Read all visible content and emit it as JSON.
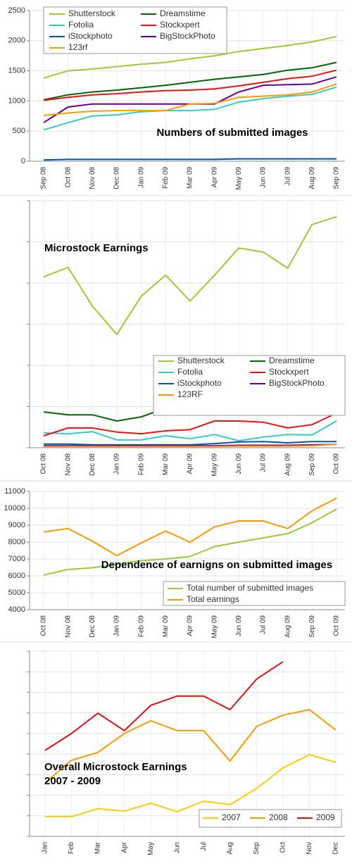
{
  "chart_data": [
    {
      "type": "line",
      "title": "Numbers of submitted images",
      "categories": [
        "Sep 08",
        "Oct 08",
        "Nov 08",
        "Dec 08",
        "Jan 09",
        "Feb 09",
        "Mar 09",
        "Apr 09",
        "May 09",
        "Jun 09",
        "Jul 09",
        "Aug 09",
        "Sep 09"
      ],
      "ylim": [
        0,
        2500
      ],
      "yticks": [
        0,
        500,
        1000,
        1500,
        2000,
        2500
      ],
      "grid": true,
      "ytick_labels": true,
      "series": [
        {
          "name": "Shutterstock",
          "color": "#99cc33",
          "values": [
            1380,
            1500,
            1530,
            1570,
            1610,
            1640,
            1700,
            1750,
            1820,
            1870,
            1920,
            1980,
            2070
          ]
        },
        {
          "name": "Dreamstime",
          "color": "#006600",
          "values": [
            1020,
            1100,
            1150,
            1180,
            1220,
            1260,
            1310,
            1360,
            1400,
            1440,
            1510,
            1550,
            1640
          ]
        },
        {
          "name": "Fotolia",
          "color": "#33cccc",
          "values": [
            520,
            640,
            750,
            770,
            820,
            840,
            840,
            860,
            980,
            1040,
            1080,
            1110,
            1230
          ]
        },
        {
          "name": "Stockxpert",
          "color": "#ee1111",
          "values": [
            1010,
            1060,
            1100,
            1120,
            1150,
            1170,
            1180,
            1200,
            1250,
            1310,
            1370,
            1410,
            1510
          ]
        },
        {
          "name": "iStockphoto",
          "color": "#0055bb",
          "values": [
            20,
            30,
            30,
            30,
            30,
            30,
            30,
            30,
            40,
            40,
            40,
            40,
            40
          ]
        },
        {
          "name": "BigStockPhoto",
          "color": "#660099",
          "values": [
            640,
            900,
            950,
            950,
            950,
            950,
            950,
            950,
            1150,
            1260,
            1270,
            1280,
            1400
          ]
        },
        {
          "name": "123rf",
          "color": "#ff9900",
          "values": [
            760,
            800,
            830,
            840,
            840,
            840,
            950,
            960,
            1060,
            1080,
            1100,
            1150,
            1280
          ]
        }
      ]
    },
    {
      "type": "line",
      "title": "Microstock Earnings",
      "categories": [
        "Oct 08",
        "Nov 08",
        "Dec 08",
        "Jan 09",
        "Feb 09",
        "Mar 09",
        "Apr 09",
        "May 09",
        "Jun 09",
        "Jul 09",
        "Aug 09",
        "Sep 09",
        "Oct 09"
      ],
      "ylim": [
        0,
        6
      ],
      "yticks": [
        0,
        1,
        2,
        3,
        4,
        5,
        6
      ],
      "grid": true,
      "ytick_labels": false,
      "series": [
        {
          "name": "Shutterstock",
          "color": "#99cc33",
          "values": [
            4.15,
            4.38,
            3.44,
            2.75,
            3.68,
            4.19,
            3.56,
            4.19,
            4.85,
            4.75,
            4.36,
            5.42,
            5.61
          ]
        },
        {
          "name": "Dreamstime",
          "color": "#006600",
          "values": [
            0.87,
            0.8,
            0.8,
            0.65,
            0.75,
            0.96,
            0.82,
            0.94,
            0.85,
            0.87,
            0.8,
            1.03,
            1.03
          ]
        },
        {
          "name": "Fotolia",
          "color": "#33cccc",
          "values": [
            0.36,
            0.34,
            0.39,
            0.19,
            0.19,
            0.29,
            0.22,
            0.32,
            0.17,
            0.26,
            0.32,
            0.31,
            0.65
          ]
        },
        {
          "name": "Stockxpert",
          "color": "#ee1111",
          "values": [
            0.29,
            0.48,
            0.48,
            0.38,
            0.34,
            0.41,
            0.44,
            0.65,
            0.65,
            0.62,
            0.48,
            0.56,
            0.84
          ]
        },
        {
          "name": "iStockphoto",
          "color": "#0055bb",
          "values": [
            0.09,
            0.09,
            0.07,
            0.07,
            0.07,
            0.07,
            0.07,
            0.1,
            0.14,
            0.15,
            0.12,
            0.15,
            0.15
          ]
        },
        {
          "name": "BigStockPhoto",
          "color": "#660099",
          "values": [
            0.05,
            0.05,
            0.05,
            0.05,
            0.05,
            0.05,
            0.05,
            0.05,
            0.06,
            0.06,
            0.06,
            0.07,
            0.08
          ]
        },
        {
          "name": "123RF",
          "color": "#ff9900",
          "values": [
            0.03,
            0.03,
            0.03,
            0.03,
            0.03,
            0.03,
            0.03,
            0.03,
            0.04,
            0.04,
            0.04,
            0.05,
            0.08
          ]
        }
      ]
    },
    {
      "type": "line",
      "title": "Dependence of earnigns on submitted images",
      "categories": [
        "Oct 08",
        "Nov 08",
        "Dec 08",
        "Jan 09",
        "Feb 09",
        "Mar 09",
        "Apr 09",
        "May 09",
        "Jun 09",
        "Jul 09",
        "Aug 09",
        "Sep 09",
        "Oct 09"
      ],
      "ylim": [
        4000,
        11000
      ],
      "yticks": [
        4000,
        5000,
        6000,
        7000,
        8000,
        9000,
        10000,
        11000
      ],
      "grid": true,
      "ytick_labels": true,
      "series": [
        {
          "name": "Total number of submitted images",
          "color": "#99cc33",
          "values": [
            6050,
            6380,
            6480,
            6700,
            6900,
            7000,
            7150,
            7730,
            8000,
            8250,
            8500,
            9150,
            9950
          ]
        },
        {
          "name": "Total earnings",
          "color": "#ff9900",
          "values": [
            8600,
            8800,
            8050,
            7200,
            7950,
            8650,
            8000,
            8900,
            9250,
            9250,
            8800,
            9850,
            10600
          ]
        }
      ]
    },
    {
      "type": "line",
      "title": "Overall Microstock Earnings",
      "subtitle": "2007 - 2009",
      "categories": [
        "Jan",
        "Feb",
        "Mar",
        "Apr",
        "May",
        "Jun",
        "Jul",
        "Aug",
        "Sep",
        "Oct",
        "Nov",
        "Dec"
      ],
      "ylim": [
        0,
        9
      ],
      "yticks": [
        0,
        1,
        2,
        3,
        4,
        5,
        6,
        7,
        8,
        9
      ],
      "grid": true,
      "ytick_labels": false,
      "series": [
        {
          "name": "2007",
          "color": "#ffcc00",
          "values": [
            0.96,
            0.96,
            1.34,
            1.23,
            1.61,
            1.2,
            1.71,
            1.54,
            2.33,
            3.32,
            3.97,
            3.6
          ]
        },
        {
          "name": "2008",
          "color": "#ff9900",
          "values": [
            2.6,
            3.7,
            4.08,
            5.0,
            5.62,
            5.14,
            5.14,
            3.66,
            5.34,
            5.89,
            6.16,
            5.17
          ]
        },
        {
          "name": "2009",
          "color": "#dd1111",
          "values": [
            4.18,
            5.0,
            5.99,
            5.14,
            6.37,
            6.82,
            6.82,
            6.16,
            7.64,
            8.49,
            null,
            null
          ]
        }
      ]
    }
  ]
}
